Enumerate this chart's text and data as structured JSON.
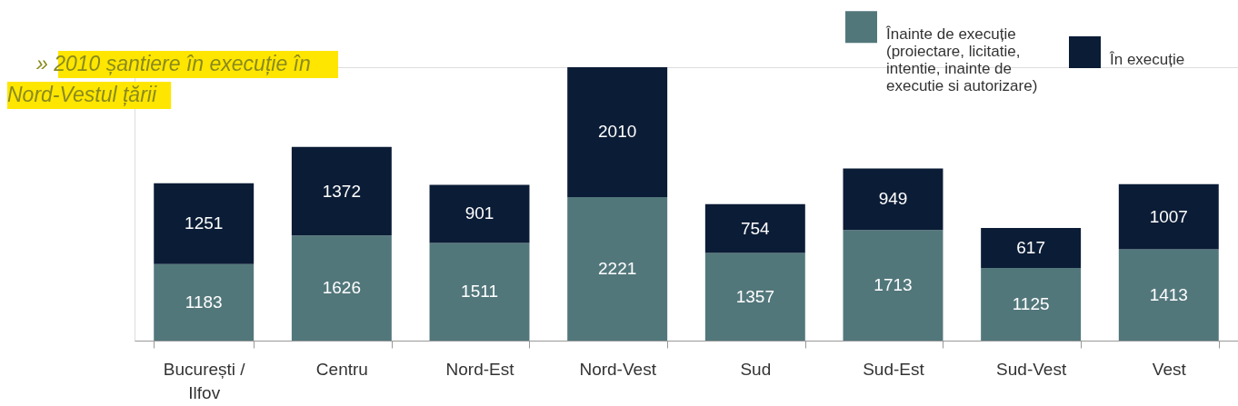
{
  "chart_data": {
    "type": "bar",
    "stacked": true,
    "data_labels": true,
    "legend": "top right",
    "grid": false,
    "categories": [
      "București / Ilfov",
      "Centru",
      "Nord-Est",
      "Nord-Vest",
      "Sud",
      "Sud-Est",
      "Sud-Vest",
      "Vest"
    ],
    "series": [
      {
        "name": "Înainte de execuție (proiectare, licitatie, intentie, inainte de executie si autorizare)",
        "color": "#52777b",
        "values": [
          1183,
          1626,
          1511,
          2221,
          1357,
          1713,
          1125,
          1413
        ]
      },
      {
        "name": "În execuție",
        "color": "#0b1c36",
        "values": [
          1251,
          1372,
          901,
          2010,
          754,
          949,
          617,
          1007
        ]
      }
    ],
    "annotations": [
      "» 2010 șantiere în execuție în Nord-Vestul țării"
    ]
  }
}
